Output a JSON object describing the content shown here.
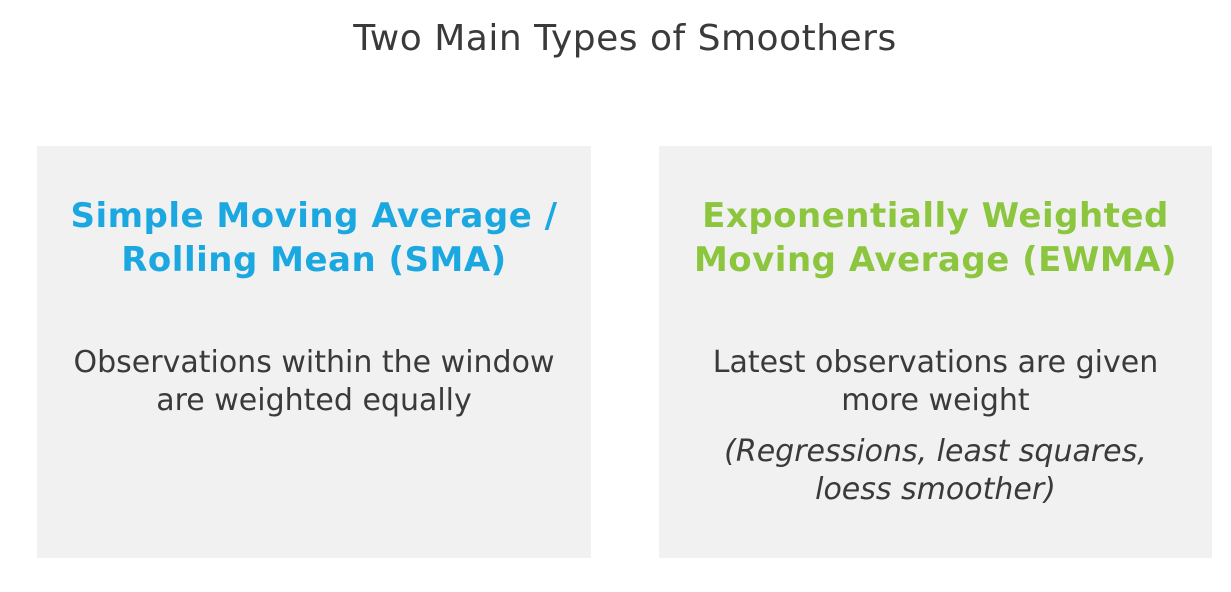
{
  "title": "Two Main Types of Smoothers",
  "colors": {
    "sma_heading": "#1ba8e0",
    "ewma_heading": "#8cc63e",
    "body_text": "#3a3a3a",
    "card_background": "#f1f1f2"
  },
  "sma": {
    "heading_line1": "Simple Moving Average /",
    "heading_line2": "Rolling Mean (SMA)",
    "body_line1": "Observations within the window",
    "body_line2": "are weighted equally"
  },
  "ewma": {
    "heading_line1": "Exponentially Weighted",
    "heading_line2": "Moving Average (EWMA)",
    "body_line1": "Latest observations are given",
    "body_line2": "more weight",
    "note_line1": "(Regressions, least squares,",
    "note_line2": "loess smoother)"
  }
}
